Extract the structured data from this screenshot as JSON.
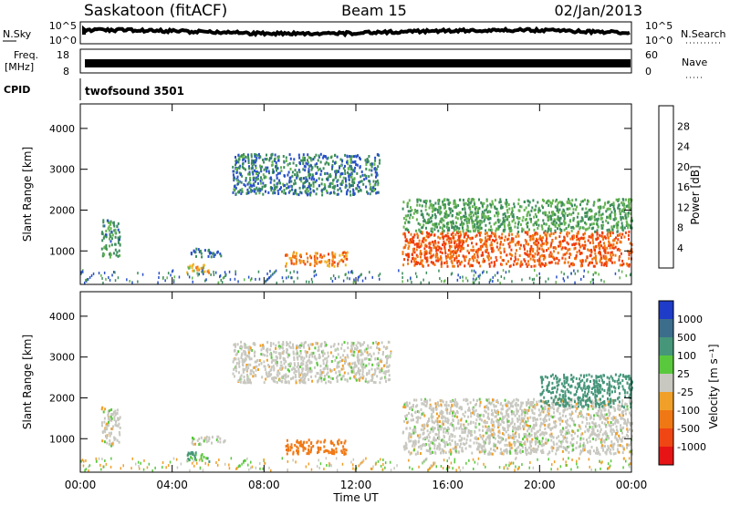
{
  "header": {
    "station": "Saskatoon (fitACF)",
    "beam": "Beam 15",
    "date": "02/Jan/2013"
  },
  "noise_panel": {
    "left_label": "N.Sky",
    "right_label": "N.Search",
    "ticks": [
      "10^5",
      "10^0"
    ]
  },
  "freq_panel": {
    "left_label_line1": "Freq.",
    "left_label_line2": "[MHz]",
    "left_ticks": [
      "18",
      "8"
    ],
    "right_ticks": [
      "60",
      "0"
    ],
    "right_label": "Nave"
  },
  "cpid_panel": {
    "label": "CPID",
    "program": "twofsound 3501"
  },
  "x_axis": {
    "label": "Time UT",
    "ticks": [
      "00:00",
      "04:00",
      "08:00",
      "12:00",
      "16:00",
      "20:00",
      "00:00"
    ]
  },
  "power_colorbar": {
    "label": "Power [dB]",
    "ticks": [
      "4",
      "8",
      "12",
      "16",
      "20",
      "24",
      "28"
    ],
    "colors": [
      "#1418f0",
      "#2850c8",
      "#3c8c5c",
      "#64b450",
      "#f0b428",
      "#f07814",
      "#f03c0a",
      "#e61414"
    ]
  },
  "velocity_colorbar": {
    "label": "Velocity [m s⁻¹]",
    "ticks": [
      "1000",
      "500",
      "100",
      "25",
      "-25",
      "-100",
      "-500",
      "-1000"
    ],
    "colors": [
      "#1e3cc8",
      "#3c6e8c",
      "#46967a",
      "#5ac83c",
      "#c8c8c0",
      "#f0a028",
      "#f07814",
      "#f04614",
      "#e61414"
    ]
  },
  "chart_data": [
    {
      "type": "heatmap",
      "title": "Power",
      "xlabel": "Time UT",
      "ylabel": "Slant Range [km]",
      "xlim": [
        0,
        24
      ],
      "ylim": [
        180,
        4600
      ],
      "yticks": [
        "4000",
        "3000",
        "2000",
        "1000"
      ],
      "ytick_values": [
        4000,
        3000,
        2000,
        1000
      ],
      "colorbar_label": "Power [dB]",
      "zlim": [
        0,
        32
      ],
      "regions": [
        {
          "t0": 0.9,
          "t1": 1.7,
          "r0": 850,
          "r1": 1800,
          "value": 11
        },
        {
          "t0": 4.8,
          "t1": 6.1,
          "r0": 880,
          "r1": 1080,
          "value": 8
        },
        {
          "t0": 4.6,
          "t1": 5.6,
          "r0": 450,
          "r1": 700,
          "value": 19
        },
        {
          "t0": 8.9,
          "t1": 11.6,
          "r0": 650,
          "r1": 1000,
          "value": 22
        },
        {
          "t0": 6.6,
          "t1": 13.0,
          "r0": 2400,
          "r1": 3400,
          "value": 9
        },
        {
          "t0": 14.0,
          "t1": 24.0,
          "r0": 650,
          "r1": 1500,
          "value": 24
        },
        {
          "t0": 14.0,
          "t1": 24.0,
          "r0": 1500,
          "r1": 2300,
          "value": 12
        }
      ]
    },
    {
      "type": "heatmap",
      "title": "Velocity",
      "xlabel": "Time UT",
      "ylabel": "Slant Range [km]",
      "xlim": [
        0,
        24
      ],
      "ylim": [
        180,
        4600
      ],
      "yticks": [
        "4000",
        "3000",
        "2000",
        "1000"
      ],
      "ytick_values": [
        4000,
        3000,
        2000,
        1000
      ],
      "colorbar_label": "Velocity [m s⁻¹]",
      "zlim": [
        -1000,
        1000
      ],
      "regions": [
        {
          "t0": 0.9,
          "t1": 1.7,
          "r0": 850,
          "r1": 1800,
          "value": 0
        },
        {
          "t0": 4.8,
          "t1": 6.3,
          "r0": 880,
          "r1": 1080,
          "value": 0
        },
        {
          "t0": 4.6,
          "t1": 5.6,
          "r0": 450,
          "r1": 700,
          "value": 110
        },
        {
          "t0": 8.9,
          "t1": 11.6,
          "r0": 650,
          "r1": 1000,
          "value": -400
        },
        {
          "t0": 6.6,
          "t1": 13.5,
          "r0": 2400,
          "r1": 3400,
          "value": 0
        },
        {
          "t0": 14.0,
          "t1": 24.0,
          "r0": 650,
          "r1": 2000,
          "value": 0
        },
        {
          "t0": 20.0,
          "t1": 24.0,
          "r0": 1800,
          "r1": 2600,
          "value": 300
        }
      ]
    }
  ]
}
